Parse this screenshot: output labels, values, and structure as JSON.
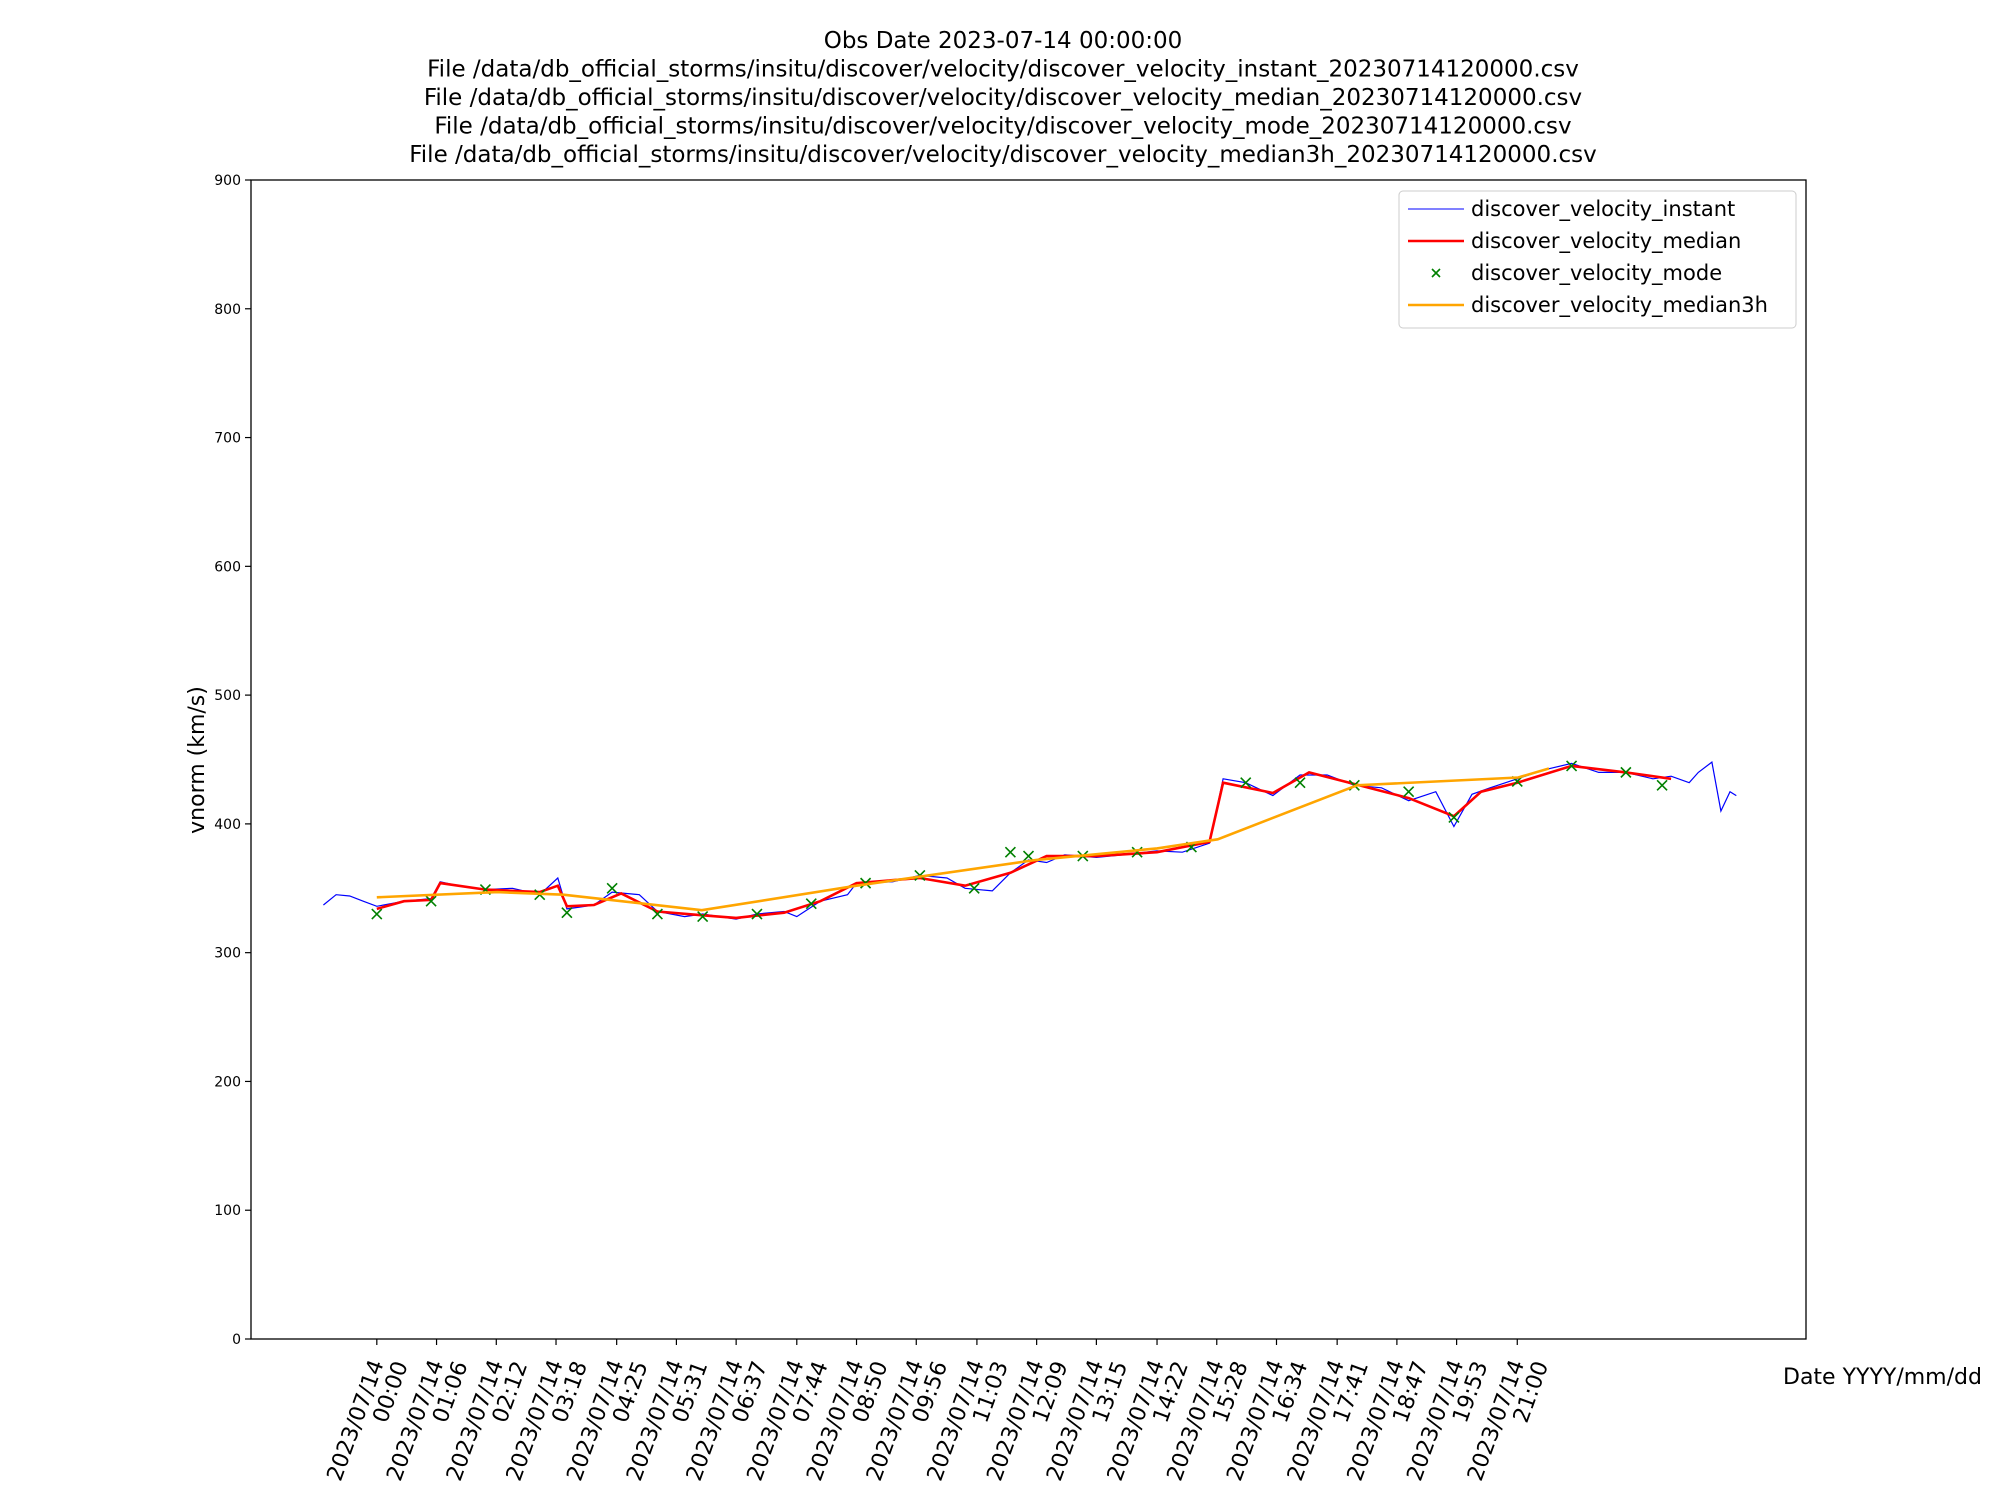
{
  "chart_data": {
    "type": "line",
    "title": [
      "Obs Date 2023-07-14 00:00:00",
      "File /data/db_official_storms/insitu/discover/velocity/discover_velocity_instant_20230714120000.csv",
      "File /data/db_official_storms/insitu/discover/velocity/discover_velocity_median_20230714120000.csv",
      "File /data/db_official_storms/insitu/discover/velocity/discover_velocity_mode_20230714120000.csv",
      "File /data/db_official_storms/insitu/discover/velocity/discover_velocity_median3h_20230714120000.csv"
    ],
    "y_label": "vnorm (km/s)",
    "x_label": "Date YYYY/mm/dd",
    "xlim": [
      "2023/07/13 21:41",
      "2023/07/15 02:19"
    ],
    "xticks": [
      "2023/07/14 00:00",
      "2023/07/14 01:06",
      "2023/07/14 02:12",
      "2023/07/14 03:18",
      "2023/07/14 04:25",
      "2023/07/14 05:31",
      "2023/07/14 06:37",
      "2023/07/14 07:44",
      "2023/07/14 08:50",
      "2023/07/14 09:56",
      "2023/07/14 11:03",
      "2023/07/14 12:09",
      "2023/07/14 13:15",
      "2023/07/14 14:22",
      "2023/07/14 15:28",
      "2023/07/14 16:34",
      "2023/07/14 17:41",
      "2023/07/14 18:47",
      "2023/07/14 19:53",
      "2023/07/14 21:00"
    ],
    "ylim": [
      0,
      900
    ],
    "yticks": [
      0,
      100,
      200,
      300,
      400,
      500,
      600,
      700,
      800,
      900
    ],
    "legend": "upper right",
    "series": [
      {
        "name": "discover_velocity_instant",
        "color": "#0000ff",
        "style": "line",
        "x": [
          "2023/07/13 23:01",
          "2023/07/13 23:15",
          "2023/07/13 23:30",
          "2023/07/13 23:45",
          "2023/07/14 00:00",
          "2023/07/14 00:30",
          "2023/07/14 01:00",
          "2023/07/14 01:10",
          "2023/07/14 01:30",
          "2023/07/14 02:00",
          "2023/07/14 02:30",
          "2023/07/14 03:00",
          "2023/07/14 03:20",
          "2023/07/14 03:30",
          "2023/07/14 04:00",
          "2023/07/14 04:20",
          "2023/07/14 04:50",
          "2023/07/14 05:10",
          "2023/07/14 05:40",
          "2023/07/14 06:00",
          "2023/07/14 06:37",
          "2023/07/14 07:00",
          "2023/07/14 07:30",
          "2023/07/14 07:44",
          "2023/07/14 08:10",
          "2023/07/14 08:40",
          "2023/07/14 08:50",
          "2023/07/14 09:30",
          "2023/07/14 10:00",
          "2023/07/14 10:30",
          "2023/07/14 10:50",
          "2023/07/14 11:20",
          "2023/07/14 11:40",
          "2023/07/14 12:00",
          "2023/07/14 12:20",
          "2023/07/14 12:40",
          "2023/07/14 13:15",
          "2023/07/14 13:45",
          "2023/07/14 14:22",
          "2023/07/14 14:50",
          "2023/07/14 15:20",
          "2023/07/14 15:35",
          "2023/07/14 16:00",
          "2023/07/14 16:30",
          "2023/07/14 17:00",
          "2023/07/14 17:30",
          "2023/07/14 18:00",
          "2023/07/14 18:30",
          "2023/07/14 19:00",
          "2023/07/14 19:30",
          "2023/07/14 19:50",
          "2023/07/14 20:10",
          "2023/07/14 20:30",
          "2023/07/14 21:00",
          "2023/07/14 21:30",
          "2023/07/14 22:00",
          "2023/07/14 22:30",
          "2023/07/14 23:00",
          "2023/07/14 23:30",
          "2023/07/14 23:50",
          "2023/07/15 00:10",
          "2023/07/15 00:20",
          "2023/07/15 00:35",
          "2023/07/15 00:45",
          "2023/07/15 00:55",
          "2023/07/15 01:02"
        ],
        "values": [
          337,
          345,
          344,
          340,
          336,
          340,
          342,
          355,
          352,
          349,
          350,
          345,
          358,
          334,
          337,
          347,
          345,
          332,
          328,
          330,
          326,
          330,
          332,
          328,
          340,
          345,
          354,
          355,
          360,
          358,
          350,
          348,
          362,
          372,
          370,
          376,
          374,
          376,
          379,
          378,
          385,
          435,
          432,
          422,
          438,
          438,
          430,
          428,
          418,
          425,
          398,
          423,
          428,
          435,
          442,
          447,
          440,
          440,
          435,
          437,
          432,
          440,
          448,
          410,
          425,
          422
        ]
      },
      {
        "name": "discover_velocity_median",
        "color": "#ff0000",
        "style": "thick",
        "x": [
          "2023/07/14 00:00",
          "2023/07/14 00:30",
          "2023/07/14 01:00",
          "2023/07/14 01:10",
          "2023/07/14 02:00",
          "2023/07/14 03:00",
          "2023/07/14 03:20",
          "2023/07/14 03:30",
          "2023/07/14 04:00",
          "2023/07/14 04:30",
          "2023/07/14 05:10",
          "2023/07/14 06:00",
          "2023/07/14 06:37",
          "2023/07/14 07:30",
          "2023/07/14 08:10",
          "2023/07/14 08:50",
          "2023/07/14 10:00",
          "2023/07/14 10:50",
          "2023/07/14 11:40",
          "2023/07/14 12:20",
          "2023/07/14 13:15",
          "2023/07/14 14:22",
          "2023/07/14 15:20",
          "2023/07/14 15:35",
          "2023/07/14 16:30",
          "2023/07/14 17:10",
          "2023/07/14 18:00",
          "2023/07/14 19:00",
          "2023/07/14 19:50",
          "2023/07/14 20:20",
          "2023/07/14 21:00",
          "2023/07/14 22:00",
          "2023/07/14 23:00",
          "2023/07/14 23:50"
        ],
        "values": [
          334,
          340,
          341,
          354,
          349,
          347,
          352,
          336,
          337,
          346,
          332,
          329,
          327,
          331,
          340,
          354,
          358,
          352,
          362,
          375,
          375,
          378,
          386,
          432,
          424,
          440,
          431,
          420,
          406,
          425,
          432,
          445,
          440,
          435
        ]
      },
      {
        "name": "discover_velocity_mode",
        "color": "#008000",
        "style": "marker",
        "x": [
          "2023/07/14 00:00",
          "2023/07/14 01:00",
          "2023/07/14 02:00",
          "2023/07/14 03:00",
          "2023/07/14 03:30",
          "2023/07/14 04:20",
          "2023/07/14 05:10",
          "2023/07/14 06:00",
          "2023/07/14 07:00",
          "2023/07/14 08:00",
          "2023/07/14 09:00",
          "2023/07/14 10:00",
          "2023/07/14 11:00",
          "2023/07/14 11:40",
          "2023/07/14 12:00",
          "2023/07/14 13:00",
          "2023/07/14 14:00",
          "2023/07/14 15:00",
          "2023/07/14 16:00",
          "2023/07/14 17:00",
          "2023/07/14 18:00",
          "2023/07/14 19:00",
          "2023/07/14 19:50",
          "2023/07/14 21:00",
          "2023/07/14 22:00",
          "2023/07/14 23:00",
          "2023/07/14 23:40"
        ],
        "values": [
          330,
          340,
          349,
          345,
          331,
          350,
          330,
          328,
          330,
          338,
          354,
          360,
          350,
          378,
          375,
          375,
          378,
          382,
          432,
          432,
          430,
          425,
          405,
          433,
          445,
          440,
          430
        ]
      },
      {
        "name": "discover_velocity_median3h",
        "color": "#ffa500",
        "style": "thick",
        "x": [
          "2023/07/14 00:00",
          "2023/07/14 02:13",
          "2023/07/14 03:26",
          "2023/07/14 05:59",
          "2023/07/14 08:50",
          "2023/07/14 12:09",
          "2023/07/14 14:22",
          "2023/07/14 15:29",
          "2023/07/14 18:03",
          "2023/07/14 21:01",
          "2023/07/14 21:35"
        ],
        "values": [
          343,
          347,
          345,
          333,
          352,
          372,
          381,
          388,
          430,
          436,
          443
        ]
      }
    ]
  }
}
